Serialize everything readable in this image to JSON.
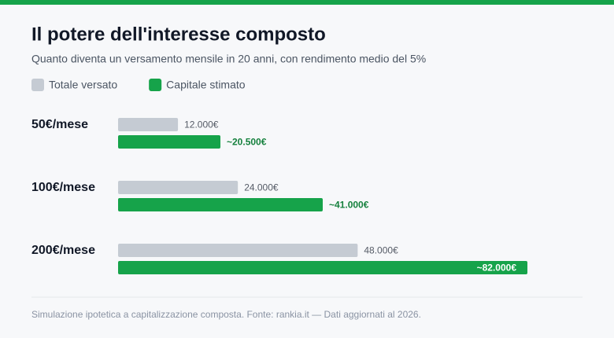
{
  "chart_data": {
    "type": "bar",
    "orientation": "horizontal",
    "title": "Il potere dell'interesse composto",
    "subtitle": "Quanto diventa un versamento mensile in 20 anni, con rendimento medio del 5%",
    "categories": [
      "50€/mese",
      "100€/mese",
      "200€/mese"
    ],
    "series": [
      {
        "name": "Totale versato",
        "color": "#c5cbd3",
        "values": [
          12000,
          24000,
          48000
        ],
        "value_labels": [
          "12.000€",
          "24.000€",
          "48.000€"
        ]
      },
      {
        "name": "Capitale stimato",
        "color": "#16a34a",
        "values": [
          20500,
          41000,
          82000
        ],
        "value_labels": [
          "~20.500€",
          "~41.000€",
          "~82.000€"
        ]
      }
    ],
    "footnote": "Simulazione ipotetica a capitalizzazione composta. Fonte: rankia.it — Dati aggiornati al 2026."
  }
}
